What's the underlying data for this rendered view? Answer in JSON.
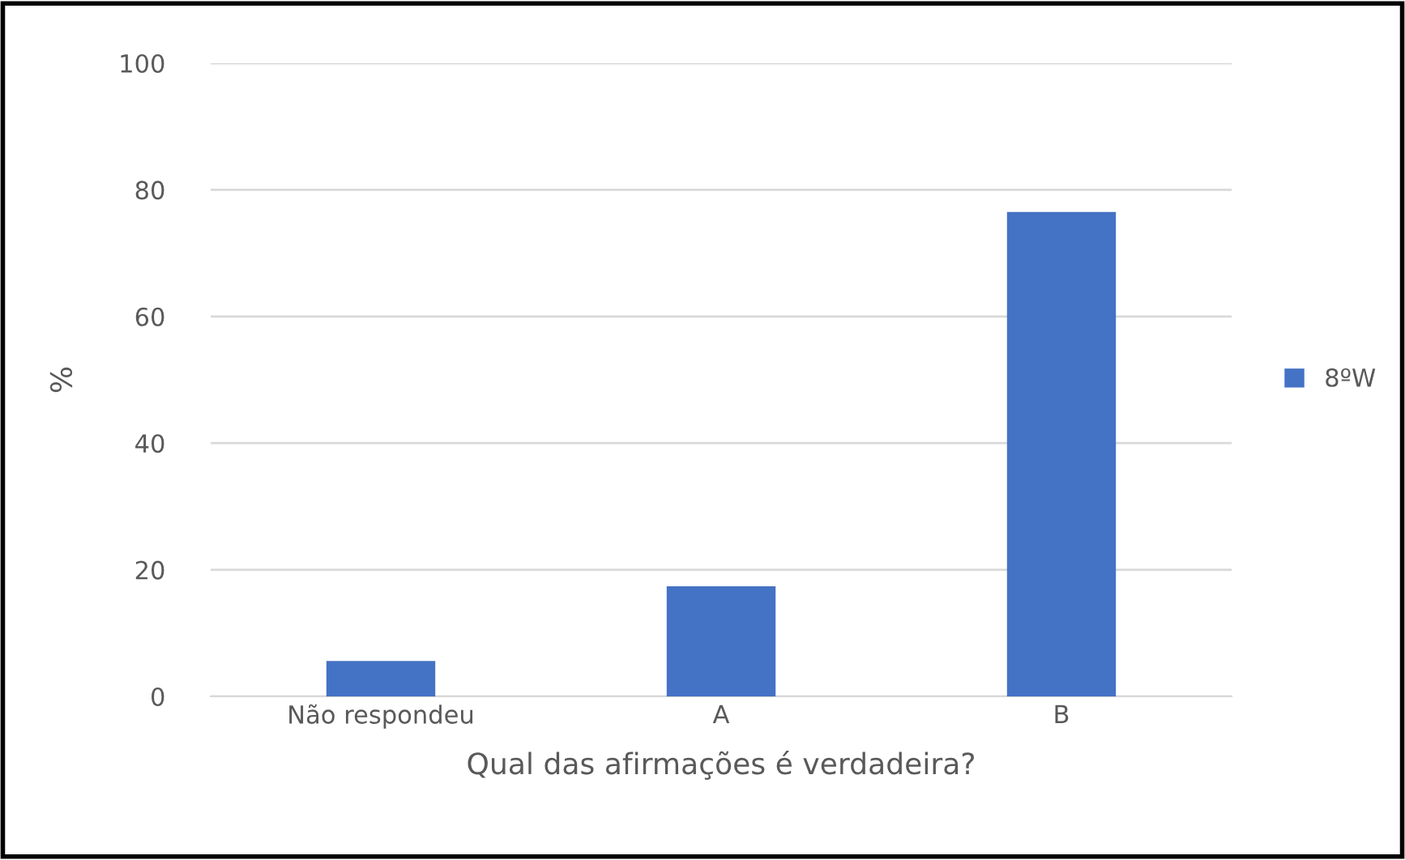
{
  "chart_data": {
    "type": "bar",
    "xlabel": "Qual das afirmações é verdadeira?",
    "ylabel": "%",
    "categories": [
      "Não respondeu",
      "A",
      "B"
    ],
    "series": [
      {
        "name": "8ºW",
        "color": "#4472c4",
        "values": [
          5.6,
          17.4,
          76.5
        ]
      }
    ],
    "ylim": [
      0,
      100
    ],
    "yticks": [
      0,
      20,
      40,
      60,
      80,
      100
    ],
    "grid": "y",
    "legend": "right"
  }
}
